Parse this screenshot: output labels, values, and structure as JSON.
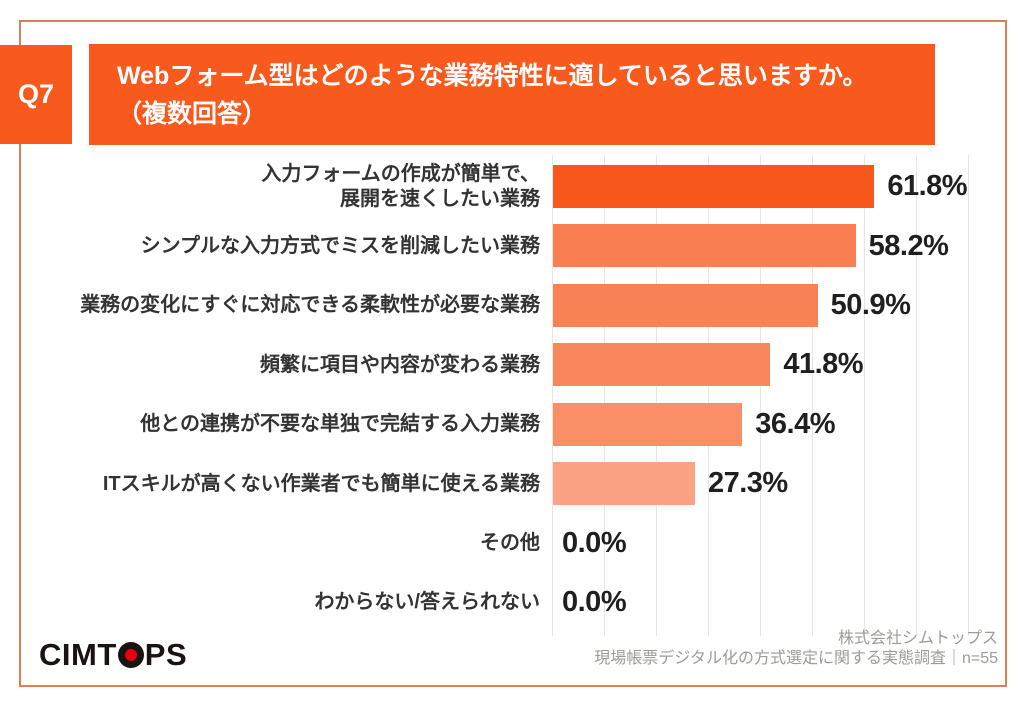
{
  "header": {
    "badge_label": "Q7",
    "title_line1": "Webフォーム型はどのような業務特性に適していると思いますか。",
    "title_line2": "（複数回答）"
  },
  "chart_data": {
    "type": "bar",
    "orientation": "horizontal",
    "title": "Webフォーム型はどのような業務特性に適していると思いますか。（複数回答）",
    "categories": [
      "入力フォームの作成が簡単で、\n展開を速くしたい業務",
      "シンプルな入力方式でミスを削減したい業務",
      "業務の変化にすぐに対応できる柔軟性が必要な業務",
      "頻繁に項目や内容が変わる業務",
      "他との連携が不要な単独で完結する入力業務",
      "ITスキルが高くない作業者でも簡単に使える業務",
      "その他",
      "わからない/答えられない"
    ],
    "values": [
      61.8,
      58.2,
      50.9,
      41.8,
      36.4,
      27.3,
      0.0,
      0.0
    ],
    "value_labels": [
      "61.8%",
      "58.2%",
      "50.9%",
      "41.8%",
      "36.4%",
      "27.3%",
      "0.0%",
      "0.0%"
    ],
    "bar_colors": [
      "#F7571A",
      "#F97F52",
      "#F98156",
      "#F9875D",
      "#FA8E66",
      "#FBA284",
      null,
      null
    ],
    "xlabel": "",
    "ylabel": "",
    "xlim": [
      0,
      80
    ],
    "gridline_interval": 10,
    "grid": true,
    "legend_position": "none"
  },
  "footer": {
    "logo_left": "CIMT",
    "logo_right": "PS",
    "attribution_line1": "株式会社シムトップス",
    "attribution_line2": "現場帳票デジタル化の方式選定に関する実態調査｜n=55"
  },
  "colors": {
    "accent": "#F75A1C",
    "frame_border": "#DC8054",
    "gridline": "#E7E4E1",
    "category_label_text": "#333333",
    "value_label_text": "#1F1F1F",
    "footer_text": "#9E9B98",
    "logo_black": "#1A1311",
    "logo_red": "#E60012"
  }
}
